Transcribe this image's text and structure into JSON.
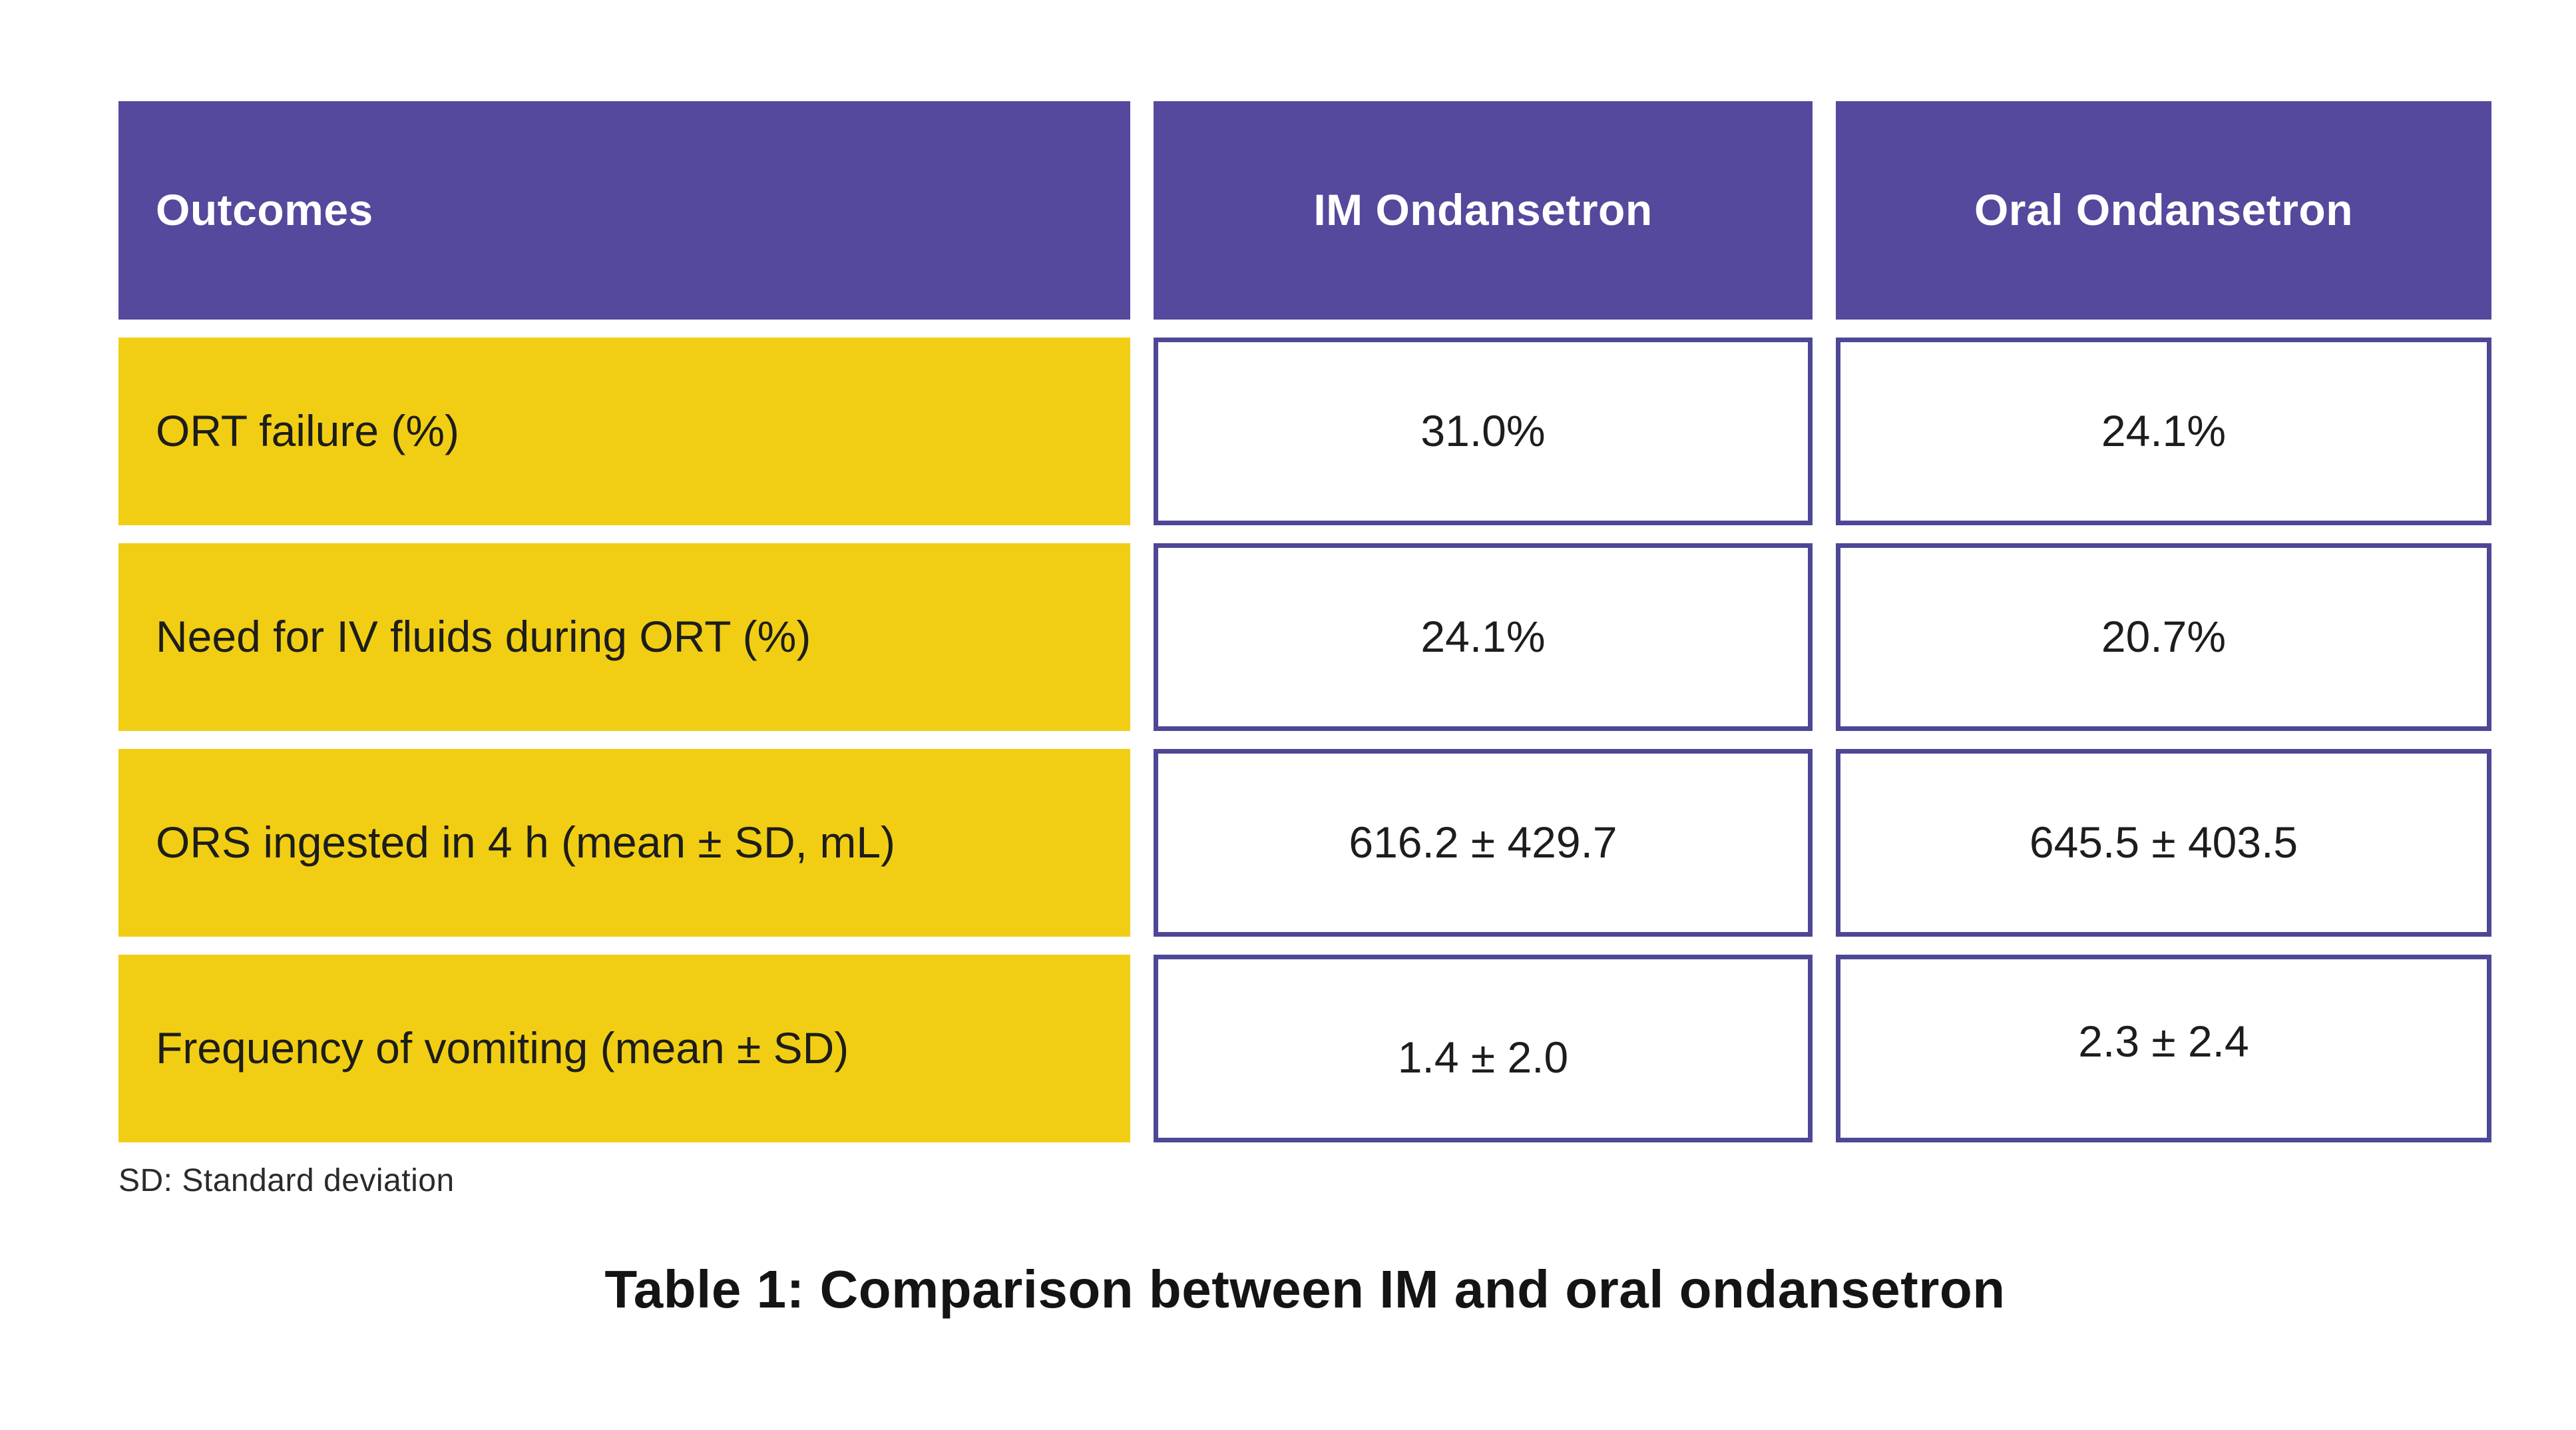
{
  "chart_data": {
    "type": "table",
    "title": "Table 1: Comparison between IM and oral ondansetron",
    "columns": [
      "Outcomes",
      "IM Ondansetron",
      "Oral Ondansetron"
    ],
    "rows": [
      {
        "outcome": "ORT failure (%)",
        "im": "31.0%",
        "oral": "24.1%"
      },
      {
        "outcome": "Need for IV fluids during ORT (%)",
        "im": "24.1%",
        "oral": "20.7%"
      },
      {
        "outcome": "ORS ingested in 4 h (mean ± SD, mL)",
        "im": "616.2 ± 429.7",
        "oral": "645.5 ± 403.5"
      },
      {
        "outcome": "Frequency of vomiting (mean ± SD)",
        "im": "1.4 ± 2.0",
        "oral": "2.3 ± 2.4"
      }
    ],
    "footnote": "SD: Standard deviation"
  },
  "colors": {
    "header_bg": "#54499c",
    "header_text": "#ffffff",
    "outcome_row_bg": "#f1ce13",
    "value_cell_border": "#4e4796",
    "value_cell_bg": "#ffffff",
    "body_text": "#1d1d1b",
    "page_bg": "#ffffff"
  }
}
